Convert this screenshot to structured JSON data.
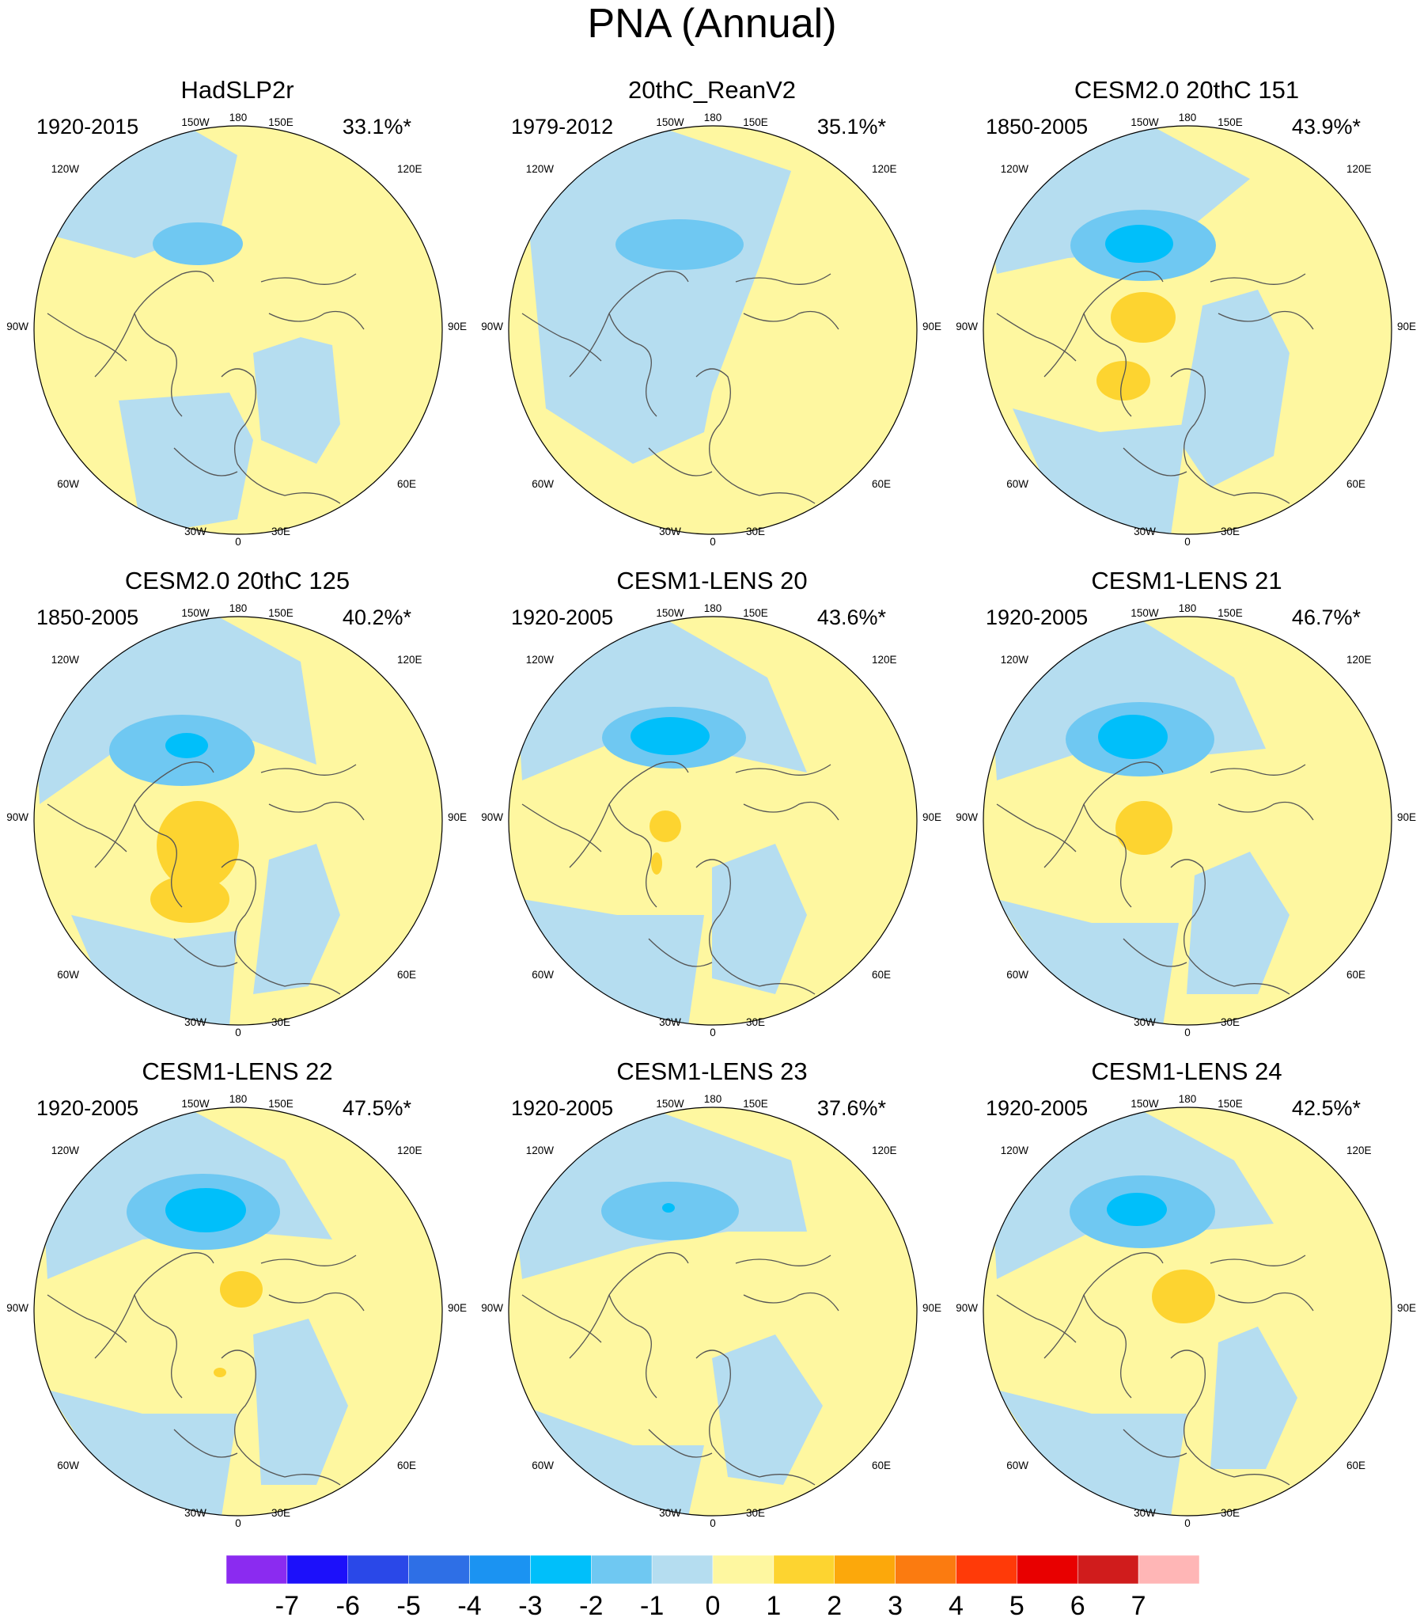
{
  "figure": {
    "title": "PNA (Annual)",
    "lon_labels": [
      "180",
      "150E",
      "120E",
      "90E",
      "60E",
      "30E",
      "0",
      "30W",
      "60W",
      "90W",
      "120W",
      "150W"
    ]
  },
  "panels": [
    {
      "title": "HadSLP2r",
      "period": "1920-2015",
      "pct": "33.1%*",
      "neg_min": -2,
      "pos_max": 1
    },
    {
      "title": "20thC_ReanV2",
      "period": "1979-2012",
      "pct": "35.1%*",
      "neg_min": -2,
      "pos_max": 1
    },
    {
      "title": "CESM2.0 20thC 151",
      "period": "1850-2005",
      "pct": "43.9%*",
      "neg_min": -3,
      "pos_max": 2
    },
    {
      "title": "CESM2.0 20thC 125",
      "period": "1850-2005",
      "pct": "40.2%*",
      "neg_min": -3,
      "pos_max": 2
    },
    {
      "title": "CESM1-LENS 20",
      "period": "1920-2005",
      "pct": "43.6%*",
      "neg_min": -3,
      "pos_max": 2
    },
    {
      "title": "CESM1-LENS 21",
      "period": "1920-2005",
      "pct": "46.7%*",
      "neg_min": -3,
      "pos_max": 2
    },
    {
      "title": "CESM1-LENS 22",
      "period": "1920-2005",
      "pct": "47.5%*",
      "neg_min": -3,
      "pos_max": 2
    },
    {
      "title": "CESM1-LENS 23",
      "period": "1920-2005",
      "pct": "37.6%*",
      "neg_min": -3,
      "pos_max": 1
    },
    {
      "title": "CESM1-LENS 24",
      "period": "1920-2005",
      "pct": "42.5%*",
      "neg_min": -3,
      "pos_max": 2
    }
  ],
  "colorbar": {
    "labels": [
      "-7",
      "-6",
      "-5",
      "-4",
      "-3",
      "-2",
      "-1",
      "0",
      "1",
      "2",
      "3",
      "4",
      "5",
      "6",
      "7"
    ],
    "colors": [
      "#8B2BF0",
      "#1C10FA",
      "#2A48E8",
      "#2E6FE6",
      "#1B93F2",
      "#00BFFA",
      "#6FC8F2",
      "#B5DDF0",
      "#FEF7A0",
      "#FDD430",
      "#FCA80B",
      "#FB7B10",
      "#FF3A08",
      "#E80000",
      "#D01C1C",
      "#FFB6B6"
    ]
  },
  "palette": {
    "neg1": "#B5DDF0",
    "neg2": "#6FC8F2",
    "neg3": "#00BFFA",
    "pos1": "#FEF7A0",
    "pos2": "#FDD430",
    "coast": "#555555",
    "frame": "#000000"
  }
}
